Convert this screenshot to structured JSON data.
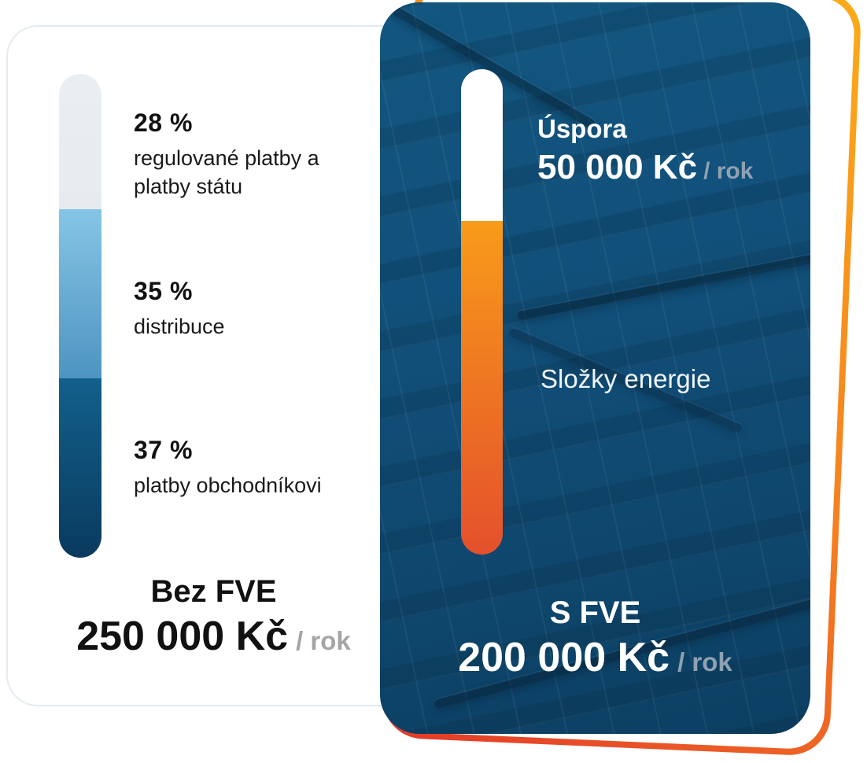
{
  "colors": {
    "page_bg": "#FFFFFF",
    "left_card_border": "#E3EAF3",
    "dark_card_base_top": "#125781",
    "dark_card_base_bottom": "#0C3F62",
    "ring_gradient_start": "#E23A2A",
    "ring_gradient_end": "#FBAB17",
    "text_dark": "#111111",
    "text_white": "#FFFFFF",
    "unit_gray_light_card": "#A5A5A5",
    "unit_gray_dark_card": "#8FA1B2"
  },
  "chart_data": {
    "type": "bar",
    "subtype": "stacked-vertical-comparison-infographic",
    "units": "Kč / rok",
    "legend_position": "beside-bars",
    "bars": [
      {
        "name": "Bez FVE",
        "total_label": "250 000 Kč",
        "unit_label": "/ rok",
        "total_value_kc_per_year": 250000,
        "segments": [
          {
            "pct_label": "28 %",
            "percent": 28,
            "label": "regulované platby a platby státu",
            "visual_pct": 28,
            "colors": [
              "#EAEEF2",
              "#E7EBEF"
            ]
          },
          {
            "pct_label": "35 %",
            "percent": 35,
            "label": "distribuce",
            "visual_pct": 35,
            "colors": [
              "#86C5E5",
              "#4E94C2"
            ]
          },
          {
            "pct_label": "37 %",
            "percent": 37,
            "label": "platby obchodníkovi",
            "visual_pct": 37,
            "colors": [
              "#12608C",
              "#0A3A5E"
            ]
          }
        ]
      },
      {
        "name": "S FVE",
        "total_label": "200 000 Kč",
        "unit_label": "/ rok",
        "total_value_kc_per_year": 200000,
        "savings": {
          "title": "Úspora",
          "amount": "50 000 Kč",
          "unit": "/ rok",
          "value_kc_per_year": 50000
        },
        "segments": [
          {
            "label": "Úspora",
            "visual_pct": 31.3,
            "colors": [
              "#FFFFFF",
              "#FFFFFF"
            ]
          },
          {
            "label": "Složky energie",
            "visual_pct": 68.7,
            "colors": [
              "#F89B1A",
              "#E4502C"
            ]
          }
        ]
      }
    ]
  }
}
